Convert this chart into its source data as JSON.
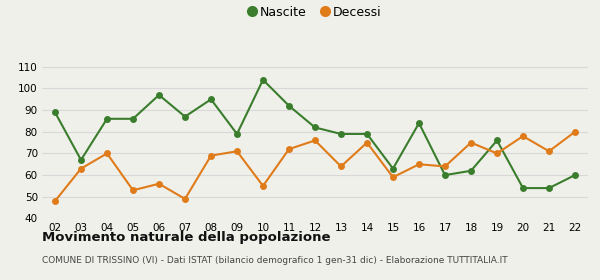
{
  "years": [
    "02",
    "03",
    "04",
    "05",
    "06",
    "07",
    "08",
    "09",
    "10",
    "11",
    "12",
    "13",
    "14",
    "15",
    "16",
    "17",
    "18",
    "19",
    "20",
    "21",
    "22"
  ],
  "nascite": [
    89,
    67,
    86,
    86,
    97,
    87,
    95,
    79,
    104,
    92,
    82,
    79,
    79,
    63,
    84,
    60,
    62,
    76,
    54,
    54,
    60
  ],
  "decessi": [
    48,
    63,
    70,
    53,
    56,
    49,
    69,
    71,
    55,
    72,
    76,
    64,
    75,
    59,
    65,
    64,
    75,
    70,
    78,
    71,
    80
  ],
  "nascite_color": "#3a7d2c",
  "decessi_color": "#e07b1a",
  "bg_color": "#f0f0eb",
  "grid_color": "#d8d8d8",
  "ylim": [
    40,
    115
  ],
  "yticks": [
    40,
    50,
    60,
    70,
    80,
    90,
    100,
    110
  ],
  "title": "Movimento naturale della popolazione",
  "subtitle": "COMUNE DI TRISSINO (VI) - Dati ISTAT (bilancio demografico 1 gen-31 dic) - Elaborazione TUTTITALIA.IT",
  "legend_nascite": "Nascite",
  "legend_decessi": "Decessi",
  "marker_size": 5,
  "linewidth": 1.5
}
